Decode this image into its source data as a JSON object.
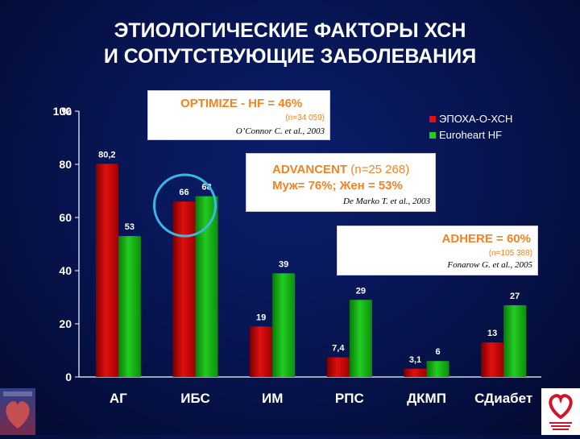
{
  "title": {
    "line1": "ЭТИОЛОГИЧЕСКИЕ ФАКТОРЫ ХСН",
    "line2": "И СОПУТСТВУЮЩИЕ ЗАБОЛЕВАНИЯ"
  },
  "chart_data": {
    "type": "bar",
    "categories": [
      "АГ",
      "ИБС",
      "ИМ",
      "РПС",
      "ДКМП",
      "СДиабет"
    ],
    "series": [
      {
        "name": "ЭПОХА-О-ХСН",
        "color": "#e01010",
        "values": [
          80.2,
          66,
          19,
          7.4,
          3.1,
          13
        ],
        "labels": [
          "80,2",
          "66",
          "19",
          "7,4",
          "3,1",
          "13"
        ]
      },
      {
        "name": "Euroheart HF",
        "color": "#22cc22",
        "values": [
          53,
          68,
          39,
          29,
          6,
          27
        ],
        "labels": [
          "53",
          "68",
          "39",
          "29",
          "6",
          "27"
        ]
      }
    ],
    "ylim": [
      0,
      100
    ],
    "yticks": [
      "0",
      "20",
      "40",
      "60",
      "80",
      "100"
    ],
    "y_unit": "%",
    "legend_position": "top-right",
    "highlight_category": "ИБС",
    "highlight_color": "#39b8e6"
  },
  "notes": [
    {
      "head": "OPTIMIZE - HF = 46%",
      "n": "(n=34 059)",
      "cite": "O’Connor C. et al., 2003"
    },
    {
      "head1": "ADVANCENT",
      "n": "(n=25 268)",
      "head2": "Муж= 76%; Жен = 53%",
      "cite": "De Marko T. et al., 2003"
    },
    {
      "head": "ADHERE = 60%",
      "n": "(n=105 388)",
      "cite": "Fonarow G. et al., 2005"
    }
  ],
  "logos": {
    "left": "heart-society-logo",
    "right": "european-society-cardiology-logo"
  }
}
